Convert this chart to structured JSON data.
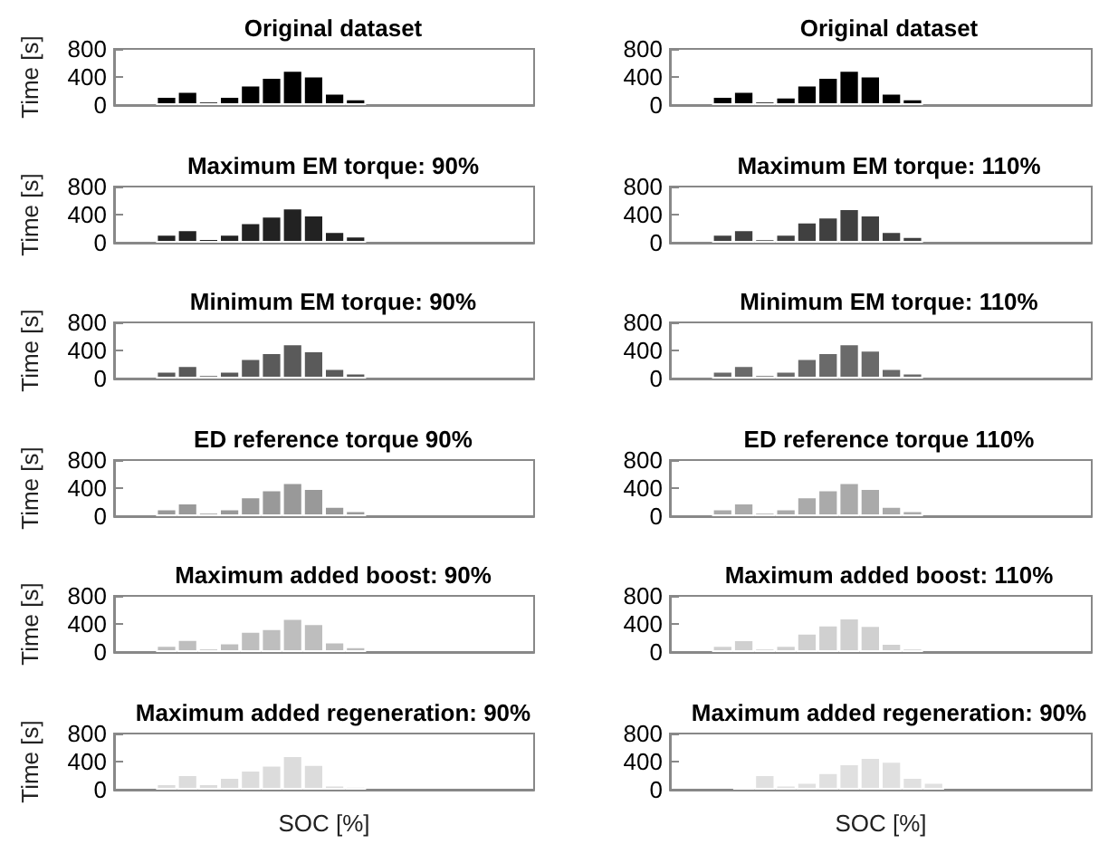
{
  "chart_data": [
    {
      "type": "bar",
      "title": "Original dataset",
      "ylabel": "Time [s]",
      "categories": [
        null,
        null,
        null,
        null,
        null,
        null,
        null,
        null,
        null,
        null,
        null,
        null,
        null,
        null,
        null,
        null,
        null,
        null,
        null,
        null
      ],
      "values": [
        null,
        null,
        130,
        200,
        60,
        130,
        290,
        400,
        500,
        420,
        175,
        95,
        null,
        null,
        null,
        null,
        null,
        null,
        null,
        null
      ],
      "color": "#000000",
      "ylim": [
        0,
        800
      ],
      "yticks": [
        0,
        400,
        800
      ],
      "tick_labels": "y"
    },
    {
      "type": "bar",
      "title": "Original dataset",
      "categories": [
        null,
        null,
        null,
        null,
        null,
        null,
        null,
        null,
        null,
        null,
        null,
        null,
        null,
        null,
        null,
        null,
        null,
        null,
        null,
        null
      ],
      "values": [
        null,
        null,
        130,
        200,
        60,
        120,
        290,
        400,
        500,
        420,
        175,
        95,
        null,
        null,
        null,
        null,
        null,
        null,
        null,
        null
      ],
      "color": "#000000",
      "ylim": [
        0,
        800
      ],
      "yticks": [
        0,
        400,
        800
      ],
      "tick_labels": "y"
    },
    {
      "type": "bar",
      "title": "Maximum EM torque: 90%",
      "ylabel": "Time [s]",
      "categories": [
        null,
        null,
        null,
        null,
        null,
        null,
        null,
        null,
        null,
        null,
        null,
        null,
        null,
        null,
        null,
        null,
        null,
        null,
        null,
        null
      ],
      "values": [
        null,
        null,
        125,
        190,
        65,
        125,
        290,
        385,
        500,
        400,
        165,
        100,
        null,
        null,
        null,
        null,
        null,
        null,
        null,
        null
      ],
      "color": "#222222",
      "ylim": [
        0,
        800
      ],
      "yticks": [
        0,
        400,
        800
      ],
      "tick_labels": "y"
    },
    {
      "type": "bar",
      "title": "Maximum EM torque: 110%",
      "categories": [
        null,
        null,
        null,
        null,
        null,
        null,
        null,
        null,
        null,
        null,
        null,
        null,
        null,
        null,
        null,
        null,
        null,
        null,
        null,
        null
      ],
      "values": [
        null,
        null,
        125,
        190,
        60,
        125,
        300,
        370,
        490,
        400,
        165,
        95,
        null,
        null,
        null,
        null,
        null,
        null,
        null,
        null
      ],
      "color": "#404040",
      "ylim": [
        0,
        800
      ],
      "yticks": [
        0,
        400,
        800
      ],
      "tick_labels": "y"
    },
    {
      "type": "bar",
      "title": "Minimum EM torque: 90%",
      "ylabel": "Time [s]",
      "categories": [
        null,
        null,
        null,
        null,
        null,
        null,
        null,
        null,
        null,
        null,
        null,
        null,
        null,
        null,
        null,
        null,
        null,
        null,
        null,
        null
      ],
      "values": [
        null,
        null,
        110,
        190,
        60,
        110,
        290,
        375,
        500,
        400,
        150,
        85,
        null,
        null,
        null,
        null,
        null,
        null,
        null,
        null
      ],
      "color": "#5a5a5a",
      "ylim": [
        0,
        800
      ],
      "yticks": [
        0,
        400,
        800
      ],
      "tick_labels": "y"
    },
    {
      "type": "bar",
      "title": "Minimum EM torque: 110%",
      "categories": [
        null,
        null,
        null,
        null,
        null,
        null,
        null,
        null,
        null,
        null,
        null,
        null,
        null,
        null,
        null,
        null,
        null,
        null,
        null,
        null
      ],
      "values": [
        null,
        null,
        110,
        190,
        60,
        110,
        290,
        375,
        500,
        410,
        150,
        85,
        null,
        null,
        null,
        null,
        null,
        null,
        null,
        null
      ],
      "color": "#6a6a6a",
      "ylim": [
        0,
        800
      ],
      "yticks": [
        0,
        400,
        800
      ],
      "tick_labels": "y"
    },
    {
      "type": "bar",
      "title": "ED reference torque 90%",
      "ylabel": "Time [s]",
      "categories": [
        null,
        null,
        null,
        null,
        null,
        null,
        null,
        null,
        null,
        null,
        null,
        null,
        null,
        null,
        null,
        null,
        null,
        null,
        null,
        null
      ],
      "values": [
        null,
        null,
        110,
        195,
        60,
        110,
        280,
        380,
        485,
        400,
        145,
        85,
        null,
        null,
        null,
        null,
        null,
        null,
        null,
        null
      ],
      "color": "#999999",
      "ylim": [
        0,
        800
      ],
      "yticks": [
        0,
        400,
        800
      ],
      "tick_labels": "y"
    },
    {
      "type": "bar",
      "title": "ED reference torque 110%",
      "categories": [
        null,
        null,
        null,
        null,
        null,
        null,
        null,
        null,
        null,
        null,
        null,
        null,
        null,
        null,
        null,
        null,
        null,
        null,
        null,
        null
      ],
      "values": [
        null,
        null,
        110,
        195,
        60,
        110,
        280,
        380,
        485,
        400,
        145,
        85,
        null,
        null,
        null,
        null,
        null,
        null,
        null,
        null
      ],
      "color": "#aaaaaa",
      "ylim": [
        0,
        800
      ],
      "yticks": [
        0,
        400,
        800
      ],
      "tick_labels": "y"
    },
    {
      "type": "bar",
      "title": "Maximum added boost: 90%",
      "ylabel": "Time [s]",
      "categories": [
        null,
        null,
        null,
        null,
        null,
        null,
        null,
        null,
        null,
        null,
        null,
        null,
        null,
        null,
        null,
        null,
        null,
        null,
        null,
        null
      ],
      "values": [
        null,
        null,
        100,
        185,
        60,
        135,
        300,
        340,
        485,
        410,
        150,
        80,
        null,
        null,
        null,
        null,
        null,
        null,
        null,
        null
      ],
      "color": "#bebebe",
      "ylim": [
        0,
        800
      ],
      "yticks": [
        0,
        400,
        800
      ],
      "tick_labels": "y"
    },
    {
      "type": "bar",
      "title": "Maximum added boost: 110%",
      "categories": [
        null,
        null,
        null,
        null,
        null,
        null,
        null,
        null,
        null,
        null,
        null,
        null,
        null,
        null,
        null,
        null,
        null,
        null,
        null,
        null
      ],
      "values": [
        null,
        null,
        100,
        180,
        60,
        100,
        275,
        390,
        490,
        385,
        130,
        60,
        null,
        null,
        null,
        null,
        null,
        null,
        null,
        null
      ],
      "color": "#d0d0d0",
      "ylim": [
        0,
        800
      ],
      "yticks": [
        0,
        400,
        800
      ],
      "tick_labels": "y"
    },
    {
      "type": "bar",
      "title": "Maximum added regeneration: 90%",
      "ylabel": "Time [s]",
      "xlabel": "SOC [%]",
      "categories": [
        null,
        null,
        null,
        null,
        null,
        null,
        null,
        null,
        null,
        null,
        null,
        null,
        null,
        null,
        null,
        null,
        null,
        null,
        null,
        null
      ],
      "values": [
        null,
        null,
        90,
        220,
        90,
        180,
        285,
        355,
        490,
        365,
        70,
        55,
        null,
        null,
        null,
        null,
        null,
        null,
        null,
        null
      ],
      "color": "#dcdcdc",
      "ylim": [
        0,
        800
      ],
      "yticks": [
        0,
        400,
        800
      ],
      "tick_labels": "y"
    },
    {
      "type": "bar",
      "title": "Maximum added regeneration: 90%",
      "xlabel": "SOC [%]",
      "categories": [
        null,
        null,
        null,
        null,
        null,
        null,
        null,
        null,
        null,
        null,
        null,
        null,
        null,
        null,
        null,
        null,
        null,
        null,
        null,
        null
      ],
      "values": [
        null,
        null,
        null,
        45,
        220,
        70,
        110,
        250,
        375,
        465,
        410,
        180,
        110,
        null,
        null,
        null,
        null,
        null,
        null,
        null
      ],
      "color": "#e0e0e0",
      "ylim": [
        0,
        800
      ],
      "yticks": [
        0,
        400,
        800
      ],
      "tick_labels": "y"
    }
  ]
}
